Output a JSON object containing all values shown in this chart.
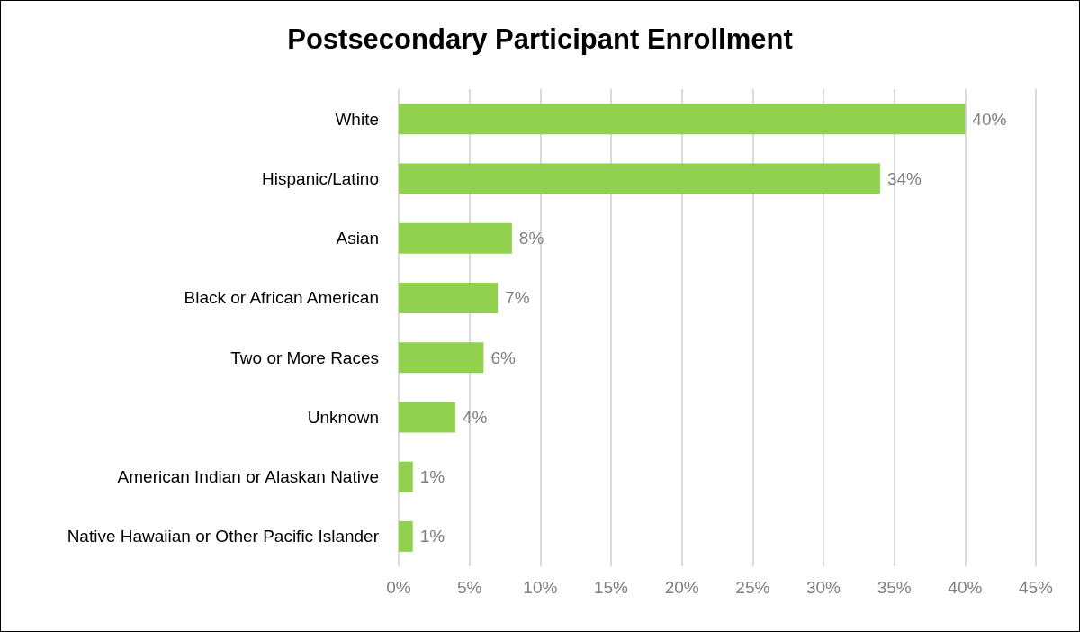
{
  "chart_data": {
    "type": "bar",
    "orientation": "horizontal",
    "title": "Postsecondary Participant Enrollment",
    "categories": [
      "White",
      "Hispanic/Latino",
      "Asian",
      "Black or African American",
      "Two or More Races",
      "Unknown",
      "American Indian or Alaskan Native",
      "Native Hawaiian or Other Pacific Islander"
    ],
    "values": [
      40,
      34,
      8,
      7,
      6,
      4,
      1,
      1
    ],
    "value_labels": [
      "40%",
      "34%",
      "8%",
      "7%",
      "6%",
      "4%",
      "1%",
      "1%"
    ],
    "color": "#92d050",
    "xlim": [
      0,
      45
    ],
    "xticks": [
      {
        "value": 0,
        "label": "0%"
      },
      {
        "value": 5,
        "label": "5%"
      },
      {
        "value": 10,
        "label": "10%"
      },
      {
        "value": 15,
        "label": "15%"
      },
      {
        "value": 20,
        "label": "20%"
      },
      {
        "value": 25,
        "label": "25%"
      },
      {
        "value": 30,
        "label": "30%"
      },
      {
        "value": 35,
        "label": "35%"
      },
      {
        "value": 40,
        "label": "40%"
      },
      {
        "value": 45,
        "label": "45%"
      }
    ],
    "grid": "x"
  }
}
